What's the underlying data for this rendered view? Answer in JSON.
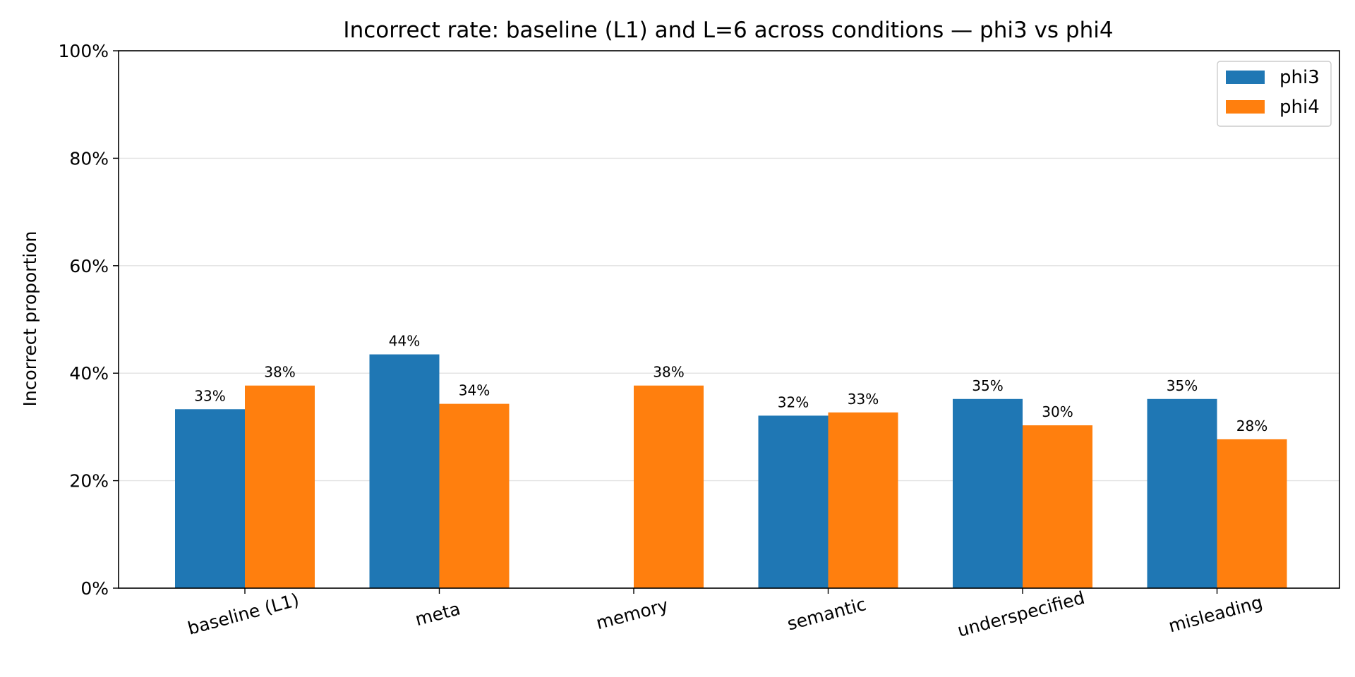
{
  "chart_data": {
    "type": "bar",
    "title": "Incorrect rate: baseline (L1) and L=6 across conditions — phi3 vs phi4",
    "xlabel": "",
    "ylabel": "Incorrect proportion",
    "ylim": [
      0,
      1
    ],
    "y_ticks": [
      0,
      0.2,
      0.4,
      0.6,
      0.8,
      1.0
    ],
    "y_tick_labels": [
      "0%",
      "20%",
      "40%",
      "60%",
      "80%",
      "100%"
    ],
    "grid": "y-major",
    "legend_position": "top-right",
    "categories": [
      "baseline (L1)",
      "meta",
      "memory",
      "semantic",
      "underspecified",
      "misleading"
    ],
    "series": [
      {
        "name": "phi3",
        "color": "#1f77b4",
        "values": [
          0.333,
          0.435,
          null,
          0.321,
          0.352,
          0.352
        ],
        "labels": [
          "33%",
          "44%",
          "",
          "32%",
          "35%",
          "35%"
        ]
      },
      {
        "name": "phi4",
        "color": "#ff7f0e",
        "values": [
          0.377,
          0.343,
          0.377,
          0.327,
          0.303,
          0.277
        ],
        "labels": [
          "38%",
          "34%",
          "38%",
          "33%",
          "30%",
          "28%"
        ]
      }
    ]
  }
}
